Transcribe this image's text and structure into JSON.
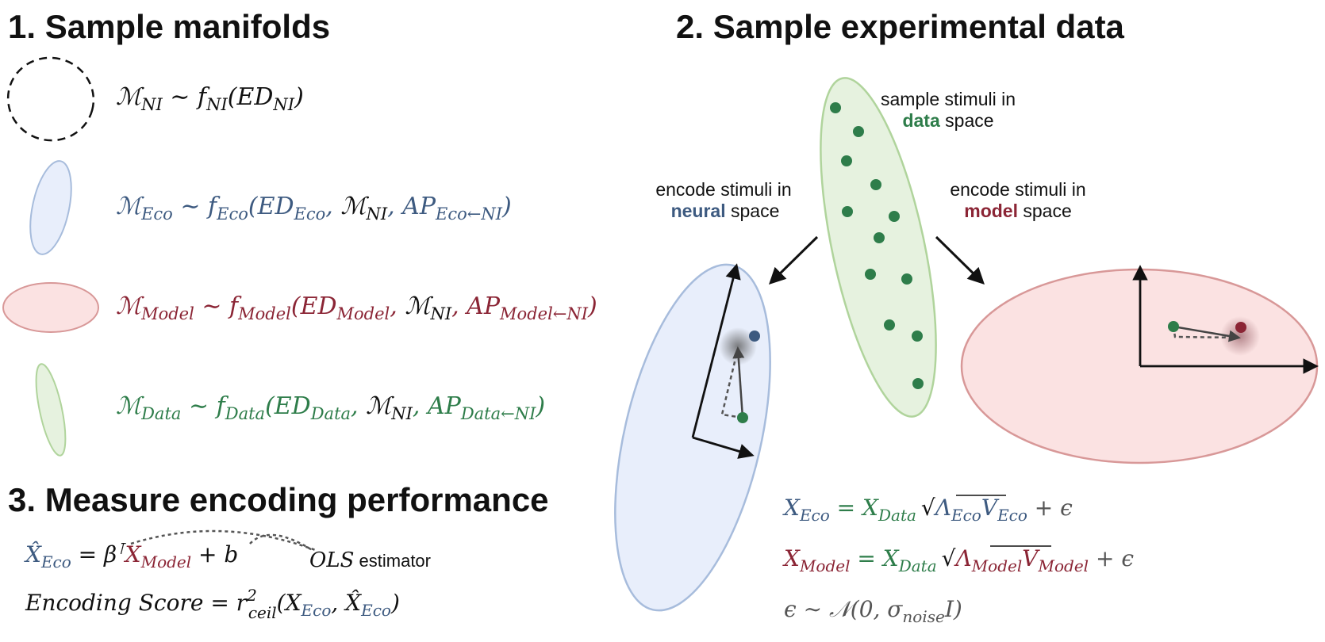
{
  "headings": {
    "sample_manifolds": "1. Sample manifolds",
    "sample_experimental_data": "2. Sample experimental data",
    "measure_encoding": "3. Measure encoding performance"
  },
  "colors": {
    "eco": "#3d5a80",
    "model": "#8b2535",
    "data": "#2e7d4a",
    "black": "#111111",
    "grey": "#555555"
  },
  "manifolds": {
    "ni": {
      "M": "ℳ",
      "sub": "NI",
      "rel": " ∼ f",
      "fsub": "NI",
      "arg": "(ED",
      "argsub": "NI",
      "close": ")"
    },
    "eco": {
      "M": "ℳ",
      "sub": "Eco",
      "rel": " ∼ f",
      "fsub": "Eco",
      "arg": "(ED",
      "argsub": "Eco",
      "sep": ", ",
      "mni": "ℳ",
      "mnisub": "NI",
      "ap": ", AP",
      "apsub": "Eco←NI",
      "close": ")"
    },
    "model": {
      "M": "ℳ",
      "sub": "Model",
      "rel": " ∼ f",
      "fsub": "Model",
      "arg": "(ED",
      "argsub": "Model",
      "sep": ", ",
      "mni": "ℳ",
      "mnisub": "NI",
      "ap": ", AP",
      "apsub": "Model←NI",
      "close": ")"
    },
    "data": {
      "M": "ℳ",
      "sub": "Data",
      "rel": " ∼ f",
      "fsub": "Data",
      "arg": "(ED",
      "argsub": "Data",
      "sep": ", ",
      "mni": "ℳ",
      "mnisub": "NI",
      "ap": ", AP",
      "apsub": "Data←NI",
      "close": ")"
    }
  },
  "labels": {
    "data_space": {
      "line1": "sample stimuli in",
      "bold": "data",
      "rest": " space"
    },
    "neural_space": {
      "line1": "encode stimuli in",
      "bold": "neural",
      "rest": " space"
    },
    "model_space": {
      "line1": "encode stimuli in",
      "bold": "model",
      "rest": " space"
    }
  },
  "equations": {
    "x_eco": {
      "X": "X",
      "sub": "Eco",
      "eq": " = X",
      "dsub": "Data",
      "sqrt": "√",
      "lam": "Λ",
      "lsub": "Eco",
      "v": "V",
      "vsub": "Eco",
      "tail": " + ϵ"
    },
    "x_model": {
      "X": "X",
      "sub": "Model",
      "eq": " = X",
      "dsub": "Data",
      "sqrt": "√",
      "lam": "Λ",
      "lsub": "Model",
      "v": "V",
      "vsub": "Model",
      "tail": " + ϵ"
    },
    "noise": {
      "eps": "ϵ ∼ 𝒩(0, σ",
      "sub": "noise",
      "tail": "I)"
    }
  },
  "encoding": {
    "estimate": {
      "xhat": "X̂",
      "sub": "Eco",
      "eq": " = β",
      "sup": "⊺",
      "x": "X",
      "xsub": "Model",
      "tail": " + b"
    },
    "ols": {
      "text": "OLS",
      "estimator": " estimator"
    },
    "score": {
      "text": "Encoding Score = r",
      "sup": "2",
      "sub": "ceil",
      "open": "(X",
      "s1": "Eco",
      "mid": ", X̂",
      "s2": "Eco",
      "close": ")"
    }
  },
  "scatter_points_data_space": 13
}
